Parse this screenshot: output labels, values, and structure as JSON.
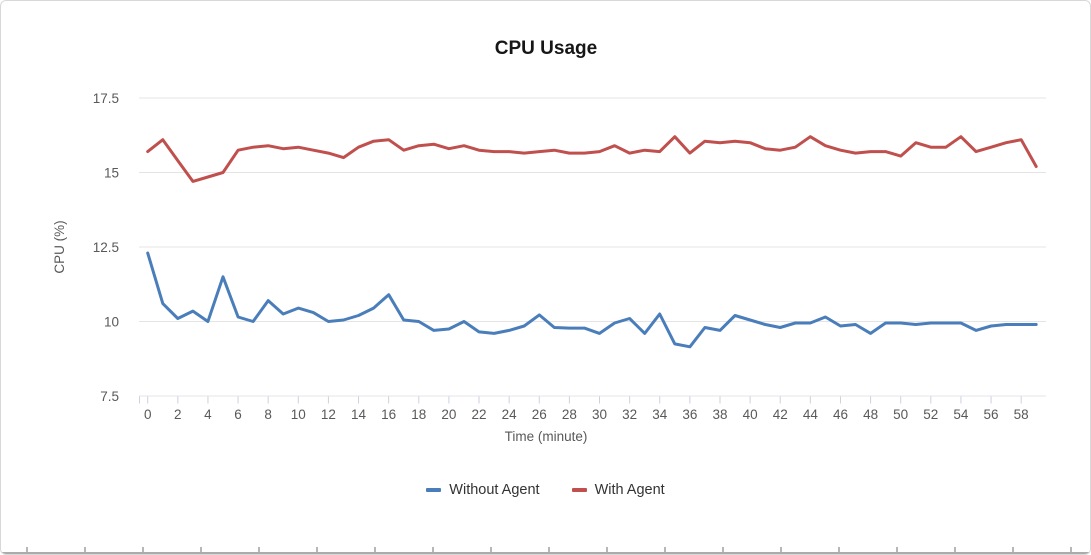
{
  "chart": {
    "title": "CPU Usage",
    "y_axis": {
      "title": "CPU (%)",
      "ticks": [
        17.5,
        15,
        12.5,
        10,
        7.5
      ]
    },
    "x_axis": {
      "title": "Time (minute)",
      "tick_values": [
        0,
        2,
        4,
        6,
        8,
        10,
        12,
        14,
        16,
        18,
        20,
        22,
        24,
        26,
        28,
        30,
        32,
        34,
        36,
        38,
        40,
        42,
        44,
        46,
        48,
        50,
        52,
        54,
        56,
        58
      ]
    },
    "legend": [
      {
        "label": "Without Agent",
        "color": "#4a7ebb"
      },
      {
        "label": "With Agent",
        "color": "#c0504d"
      }
    ],
    "colors": {
      "without_agent": "#4a7ebb",
      "with_agent": "#c0504d",
      "gridline": "#e4e4e4",
      "axis_tick": "#c8d2e2"
    }
  },
  "chart_data": {
    "type": "line",
    "title": "CPU Usage",
    "xlabel": "Time (minute)",
    "ylabel": "CPU (%)",
    "ylim": [
      7.5,
      17.5
    ],
    "xlim": [
      0,
      59
    ],
    "grid": "horizontal",
    "legend_position": "bottom",
    "x": [
      0,
      1,
      2,
      3,
      4,
      5,
      6,
      7,
      8,
      9,
      10,
      11,
      12,
      13,
      14,
      15,
      16,
      17,
      18,
      19,
      20,
      21,
      22,
      23,
      24,
      25,
      26,
      27,
      28,
      29,
      30,
      31,
      32,
      33,
      34,
      35,
      36,
      37,
      38,
      39,
      40,
      41,
      42,
      43,
      44,
      45,
      46,
      47,
      48,
      49,
      50,
      51,
      52,
      53,
      54,
      55,
      56,
      57,
      58,
      59
    ],
    "series": [
      {
        "name": "Without Agent",
        "color": "#4a7ebb",
        "values": [
          12.3,
          10.6,
          10.1,
          10.35,
          10.0,
          11.5,
          10.15,
          10.0,
          10.7,
          10.25,
          10.45,
          10.3,
          10.0,
          10.05,
          10.2,
          10.45,
          10.9,
          10.05,
          10.0,
          9.7,
          9.75,
          10.0,
          9.65,
          9.6,
          9.7,
          9.85,
          10.22,
          9.8,
          9.78,
          9.78,
          9.6,
          9.95,
          10.1,
          9.6,
          10.25,
          9.25,
          9.15,
          9.8,
          9.7,
          10.2,
          10.05,
          9.9,
          9.8,
          9.95,
          9.95,
          10.15,
          9.85,
          9.9,
          9.6,
          9.95,
          9.95,
          9.9,
          9.95,
          9.95,
          9.95,
          9.7,
          9.85,
          9.9,
          9.9,
          9.9
        ]
      },
      {
        "name": "With Agent",
        "color": "#c0504d",
        "values": [
          15.7,
          16.1,
          15.4,
          14.7,
          14.85,
          15.0,
          15.75,
          15.85,
          15.9,
          15.8,
          15.85,
          15.75,
          15.65,
          15.5,
          15.85,
          16.05,
          16.1,
          15.75,
          15.9,
          15.95,
          15.8,
          15.9,
          15.75,
          15.7,
          15.7,
          15.65,
          15.7,
          15.75,
          15.65,
          15.65,
          15.7,
          15.9,
          15.65,
          15.75,
          15.7,
          16.2,
          15.65,
          16.05,
          16.0,
          16.05,
          16.0,
          15.8,
          15.75,
          15.85,
          16.2,
          15.9,
          15.75,
          15.65,
          15.7,
          15.7,
          15.55,
          16.0,
          15.85,
          15.85,
          16.2,
          15.7,
          15.85,
          16.0,
          16.1,
          15.2
        ]
      }
    ]
  }
}
